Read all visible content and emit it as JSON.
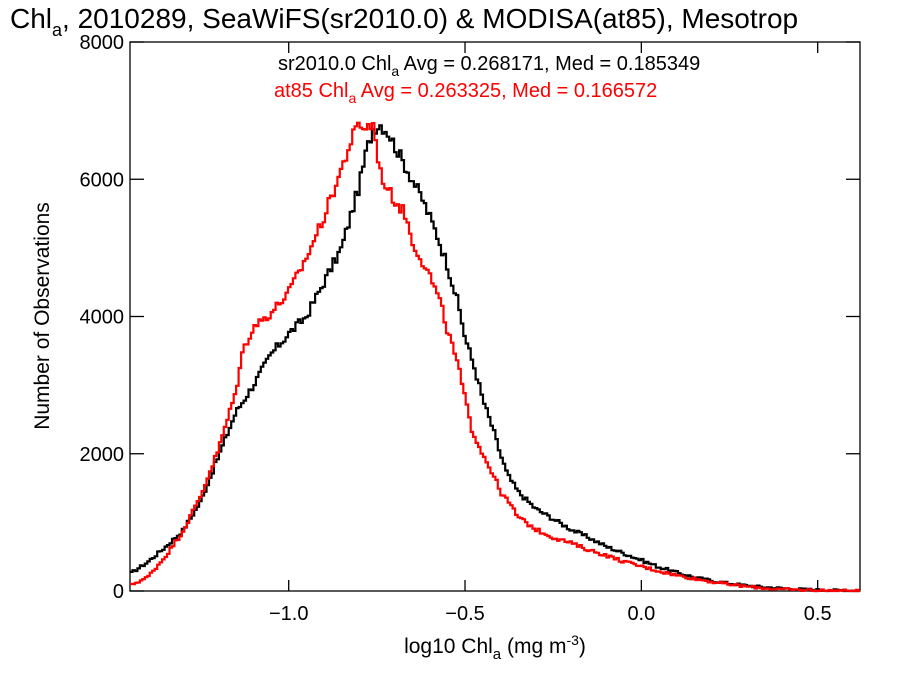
{
  "chart_data": {
    "type": "line",
    "step": true,
    "title": {
      "main": "Chl",
      "sub": "a",
      "rest": ", 2010289, SeaWiFS(sr2010.0) & MODISA(at85), Mesotrop"
    },
    "xlabel": {
      "main": "log10 Chl",
      "sub": "a",
      "units_pre": " (mg m",
      "units_sup": "-3",
      "units_post": ")"
    },
    "ylabel": "Number of Observations",
    "xlim": [
      -1.45,
      0.62
    ],
    "ylim": [
      0,
      8000
    ],
    "xticks": [
      {
        "value": -1.0,
        "label": "−1.0"
      },
      {
        "value": -0.5,
        "label": "−0.5"
      },
      {
        "value": 0.0,
        "label": "0.0"
      },
      {
        "value": 0.5,
        "label": "0.5"
      }
    ],
    "yticks": [
      {
        "value": 0,
        "label": "0"
      },
      {
        "value": 2000,
        "label": "2000"
      },
      {
        "value": 4000,
        "label": "4000"
      },
      {
        "value": 6000,
        "label": "6000"
      },
      {
        "value": 8000,
        "label": "8000"
      }
    ],
    "grid": false,
    "series": [
      {
        "stat_pre": "sr2010.0 Chl",
        "stat_sub": "a",
        "stat_post": " Avg = 0.268171, Med = 0.185349",
        "color": "#000000",
        "x": [
          -1.45,
          -1.4,
          -1.35,
          -1.3,
          -1.25,
          -1.2,
          -1.15,
          -1.1,
          -1.05,
          -1.0,
          -0.95,
          -0.9,
          -0.85,
          -0.8,
          -0.78,
          -0.76,
          -0.74,
          -0.72,
          -0.7,
          -0.68,
          -0.65,
          -0.62,
          -0.6,
          -0.58,
          -0.55,
          -0.52,
          -0.5,
          -0.47,
          -0.45,
          -0.42,
          -0.4,
          -0.38,
          -0.35,
          -0.3,
          -0.25,
          -0.2,
          -0.15,
          -0.1,
          -0.05,
          0.0,
          0.05,
          0.1,
          0.15,
          0.2,
          0.25,
          0.3,
          0.35,
          0.4,
          0.45,
          0.5,
          0.55,
          0.62
        ],
        "y": [
          250,
          420,
          640,
          880,
          1300,
          1950,
          2600,
          3000,
          3450,
          3750,
          4000,
          4500,
          5000,
          5900,
          6400,
          6750,
          6800,
          6700,
          6500,
          6300,
          6000,
          5700,
          5450,
          5200,
          4750,
          4200,
          3700,
          3200,
          2800,
          2350,
          2000,
          1700,
          1450,
          1200,
          1050,
          900,
          780,
          650,
          550,
          450,
          350,
          270,
          200,
          150,
          110,
          80,
          55,
          40,
          25,
          15,
          10,
          5
        ]
      },
      {
        "stat_pre": "at85 Chl",
        "stat_sub": "a",
        "stat_post": " Avg = 0.263325, Med = 0.166572",
        "color": "#ff0000",
        "x": [
          -1.45,
          -1.4,
          -1.35,
          -1.3,
          -1.25,
          -1.2,
          -1.15,
          -1.13,
          -1.1,
          -1.05,
          -1.0,
          -0.95,
          -0.9,
          -0.85,
          -0.82,
          -0.8,
          -0.78,
          -0.76,
          -0.74,
          -0.72,
          -0.7,
          -0.67,
          -0.65,
          -0.62,
          -0.6,
          -0.57,
          -0.55,
          -0.52,
          -0.5,
          -0.48,
          -0.45,
          -0.42,
          -0.4,
          -0.37,
          -0.35,
          -0.3,
          -0.25,
          -0.2,
          -0.15,
          -0.1,
          -0.05,
          0.0,
          0.05,
          0.1,
          0.15,
          0.2,
          0.25,
          0.3,
          0.35,
          0.4,
          0.45,
          0.5,
          0.55,
          0.62
        ],
        "y": [
          80,
          200,
          500,
          870,
          1380,
          2050,
          2900,
          3500,
          3850,
          4050,
          4350,
          4850,
          5450,
          6150,
          6600,
          6800,
          6750,
          6800,
          6100,
          5850,
          5700,
          5500,
          5100,
          4800,
          4600,
          4200,
          3800,
          3300,
          2800,
          2350,
          2000,
          1700,
          1450,
          1250,
          1080,
          900,
          780,
          700,
          600,
          520,
          430,
          360,
          290,
          230,
          180,
          135,
          95,
          65,
          40,
          25,
          15,
          10,
          5,
          3
        ]
      }
    ]
  }
}
